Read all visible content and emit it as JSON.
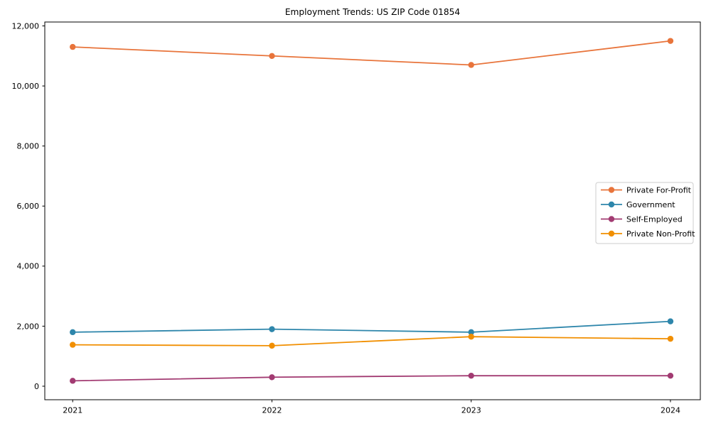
{
  "figure": {
    "title": "Employment Trends: US ZIP Code 01854"
  },
  "chart_data": {
    "type": "line",
    "title": "Employment Trends: US ZIP Code 01854",
    "xlabel": "",
    "ylabel": "",
    "x": [
      2021,
      2022,
      2023,
      2024
    ],
    "x_tick_labels": [
      "2021",
      "2022",
      "2023",
      "2024"
    ],
    "y_ticks": [
      0,
      2000,
      4000,
      6000,
      8000,
      10000,
      12000
    ],
    "y_tick_labels": [
      "0",
      "2,000",
      "4,000",
      "6,000",
      "8,000",
      "10,000",
      "12,000"
    ],
    "xlim": [
      2020.86,
      2024.15
    ],
    "ylim": [
      -450,
      12130
    ],
    "grid": false,
    "legend_position": "center-right",
    "marker": "circle",
    "series": [
      {
        "name": "Private For-Profit",
        "color": "#E8743B",
        "values": [
          11300,
          11000,
          10700,
          11500
        ]
      },
      {
        "name": "Government",
        "color": "#2E86AB",
        "values": [
          1800,
          1900,
          1800,
          2160
        ]
      },
      {
        "name": "Self-Employed",
        "color": "#A23B72",
        "values": [
          180,
          300,
          350,
          350
        ]
      },
      {
        "name": "Private Non-Profit",
        "color": "#F18F01",
        "values": [
          1380,
          1350,
          1650,
          1580
        ]
      }
    ]
  }
}
